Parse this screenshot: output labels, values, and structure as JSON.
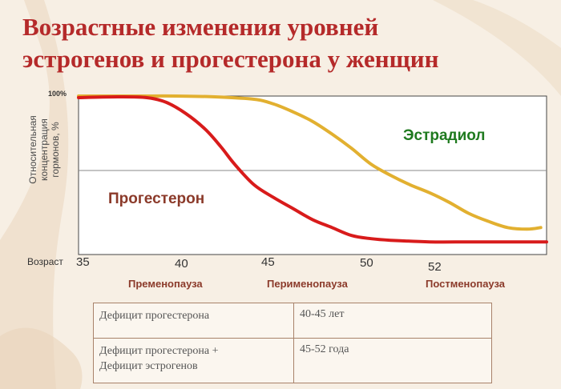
{
  "title": {
    "line1": "Возрастные изменения уровней",
    "line2": "эстрогенов и прогестерона у женщин"
  },
  "chart_data": {
    "type": "line",
    "ylabel_lines": [
      "Относительная",
      "концентрация",
      "гормонов, %"
    ],
    "y_tick_label": "100%",
    "ylim": [
      0,
      100
    ],
    "xlim": [
      35,
      59
    ],
    "x_row_label": "Возраст",
    "x_ticks": [
      {
        "value": 35,
        "label": "35"
      },
      {
        "value": 40,
        "label": "40"
      },
      {
        "value": 45,
        "label": "45"
      },
      {
        "value": 50,
        "label": "50"
      },
      {
        "value": 52,
        "label": "52"
      }
    ],
    "phases": [
      {
        "label": "Пременопауза",
        "center": 40
      },
      {
        "label": "Перименопауза",
        "center": 45.5
      },
      {
        "label": "Постменопауза",
        "center": 56
      }
    ],
    "grid_y": [
      50
    ],
    "series": [
      {
        "name": "Прогестерон",
        "color": "#d81b1b",
        "x": [
          35,
          37,
          38.5,
          39.5,
          40.5,
          41.5,
          42.3,
          43,
          44,
          45,
          46,
          47,
          48,
          49,
          50,
          51,
          53,
          55,
          57,
          59
        ],
        "y": [
          99,
          99.5,
          99,
          96,
          89,
          79,
          68,
          57,
          44,
          36,
          29,
          22,
          17,
          12,
          10,
          9,
          8,
          8,
          8,
          8
        ]
      },
      {
        "name": "Эстрадиол",
        "color": "#e2b030",
        "x": [
          35,
          38,
          40,
          42,
          44,
          45,
          46,
          47,
          48,
          49,
          50,
          51,
          52,
          53,
          54,
          55,
          56,
          57,
          58,
          58.7
        ],
        "y": [
          100,
          100,
          100,
          99.5,
          98,
          95,
          90,
          84,
          76,
          67,
          57,
          50,
          44,
          39,
          33,
          26,
          21,
          17,
          16,
          17
        ]
      }
    ]
  },
  "table": {
    "rows": [
      {
        "c1": [
          "Дефицит прогестерона"
        ],
        "c2": "40-45 лет"
      },
      {
        "c1": [
          "Дефицит прогестерона +",
          "Дефицит эстрогенов"
        ],
        "c2": "45-52 года"
      }
    ]
  }
}
